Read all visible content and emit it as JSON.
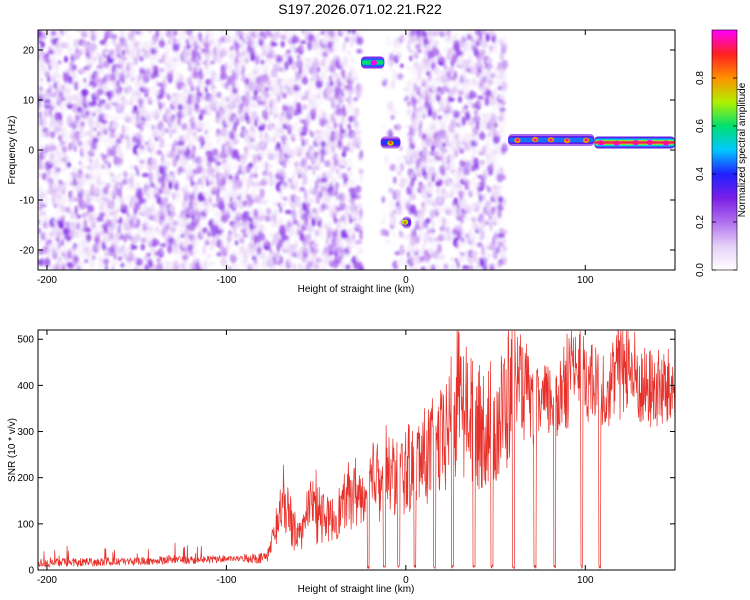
{
  "title": "S197.2026.071.02.21.R22",
  "chart_data": [
    {
      "type": "heatmap",
      "xlabel": "Height of straight line (km)",
      "ylabel": "Frequency (Hz)",
      "xlim": [
        -205,
        150
      ],
      "ylim": [
        -24,
        24
      ],
      "xticks": [
        -200,
        -100,
        0,
        100
      ],
      "yticks": [
        -20,
        -10,
        0,
        10,
        20
      ],
      "colorbar": {
        "label": "Normalized spectral amplitude",
        "range": [
          0,
          1
        ],
        "ticks": [
          "0.0",
          "0.2",
          "0.4",
          "0.6",
          "0.8"
        ],
        "stops": [
          "#ffffff",
          "#e6d0f6",
          "#b070ee",
          "#7a1fe6",
          "#2020ff",
          "#00c8ff",
          "#00e070",
          "#b0f000",
          "#ff9000",
          "#ff2020",
          "#ff00ff"
        ]
      },
      "noise_band_km": [
        -205,
        55
      ],
      "gap_km": [
        -25,
        -12
      ],
      "features": [
        {
          "x_start": -25,
          "x_end": -12,
          "freq": 17.5,
          "amp": 0.8
        },
        {
          "x_start": -14,
          "x_end": -3,
          "freq": 1.5,
          "amp": 0.55
        },
        {
          "x_start": -2,
          "x_end": 3,
          "freq": -14.5,
          "amp": 0.5
        },
        {
          "x_start": 57,
          "x_end": 105,
          "freq": 2.0,
          "amp": 0.6
        },
        {
          "x_start": 105,
          "x_end": 150,
          "freq": 1.5,
          "amp": 0.95
        }
      ]
    },
    {
      "type": "line",
      "xlabel": "Height of straight line (km)",
      "ylabel": "SNR (10 * v/v)",
      "xlim": [
        -205,
        150
      ],
      "ylim": [
        0,
        520
      ],
      "xticks": [
        -200,
        -100,
        0,
        100
      ],
      "yticks": [
        0,
        100,
        200,
        300,
        400,
        500
      ],
      "line_color": "#e8302a",
      "baseline_segments": [
        {
          "x": [
            -205,
            -80
          ],
          "y": [
            15,
            25
          ]
        },
        {
          "x": [
            -80,
            -20
          ],
          "y": [
            25,
            150
          ]
        },
        {
          "x": [
            -20,
            20
          ],
          "y": [
            150,
            260
          ]
        },
        {
          "x": [
            20,
            100
          ],
          "y": [
            260,
            390
          ]
        },
        {
          "x": [
            100,
            150
          ],
          "y": [
            390,
            380
          ]
        }
      ],
      "noise_peaks": [
        {
          "x": -68,
          "y": 225
        },
        {
          "x": -52,
          "y": 200
        },
        {
          "x": -30,
          "y": 200
        },
        {
          "x": -15,
          "y": 285
        },
        {
          "x": 30,
          "y": 500
        },
        {
          "x": 62,
          "y": 500
        },
        {
          "x": 94,
          "y": 520
        },
        {
          "x": 122,
          "y": 510
        }
      ],
      "dropouts_km": [
        -21,
        -12,
        -4,
        5,
        16,
        26,
        38,
        48,
        60,
        72,
        83,
        98,
        108
      ]
    }
  ]
}
